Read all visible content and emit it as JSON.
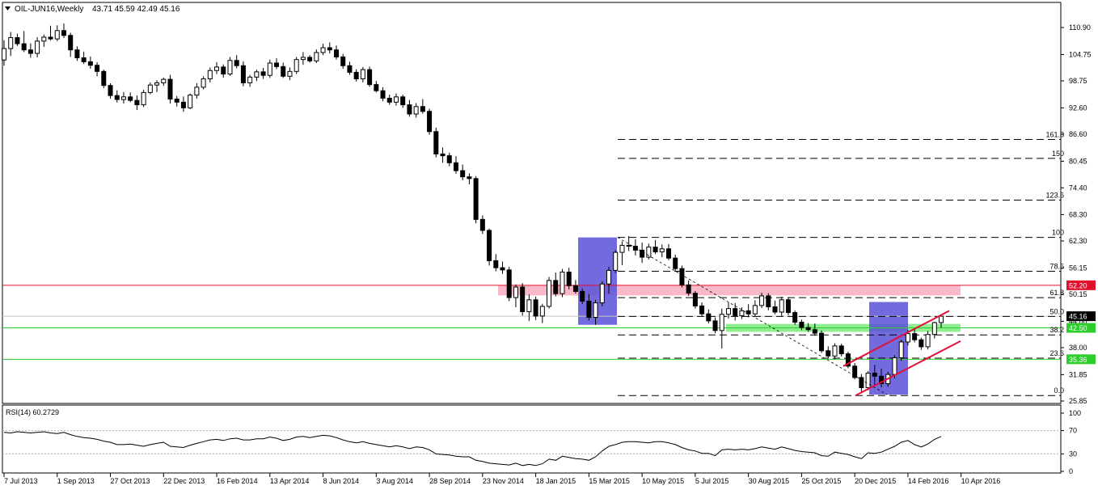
{
  "header": {
    "symbol": "OIL-JUN16,Weekly",
    "ohlc": "43.71 45.59 42.49 45.16",
    "collapse_icon": "triangle-down-icon"
  },
  "colors": {
    "bull": "#ffffff",
    "bear": "#000000",
    "resistance_line": "#e0102c",
    "support_line": "#2ccd2c",
    "resistance_zone": "#f8b8c8",
    "support_zone": "#90ee90",
    "box": "#5a50d8",
    "channel": "#e0103a",
    "rsi_line": "#000000"
  },
  "chart_data": [
    {
      "type": "candlestick",
      "title": "OIL-JUN16,Weekly",
      "ylim": [
        25.85,
        114.8
      ],
      "y_ticks": [
        "110.90",
        "104.75",
        "98.75",
        "92.60",
        "86.60",
        "80.45",
        "74.40",
        "68.30",
        "62.30",
        "56.15",
        "50.15",
        "44.00",
        "38.00",
        "31.85",
        "25.85"
      ],
      "x_labels": [
        "7 Jul 2013",
        "1 Sep 2013",
        "27 Oct 2013",
        "22 Dec 2013",
        "16 Feb 2014",
        "13 Apr 2014",
        "8 Jun 2014",
        "3 Aug 2014",
        "28 Sep 2014",
        "23 Nov 2014",
        "18 Jan 2015",
        "15 Mar 2015",
        "10 May 2015",
        "5 Jul 2015",
        "30 Aug 2015",
        "25 Oct 2015",
        "20 Dec 2015",
        "14 Feb 2016",
        "10 Apr 2016"
      ],
      "candles": [
        [
          103.5,
          108.0,
          102.2,
          106.1
        ],
        [
          106.1,
          109.9,
          104.4,
          108.6
        ],
        [
          108.6,
          109.5,
          106.7,
          107.2
        ],
        [
          107.2,
          110.1,
          105.3,
          105.8
        ],
        [
          105.8,
          107.3,
          104.0,
          105.0
        ],
        [
          105.0,
          108.7,
          104.1,
          107.8
        ],
        [
          107.8,
          109.3,
          106.5,
          108.7
        ],
        [
          108.7,
          111.3,
          107.9,
          108.3
        ],
        [
          108.3,
          111.4,
          107.8,
          110.2
        ],
        [
          110.2,
          111.8,
          108.5,
          109.1
        ],
        [
          109.1,
          109.7,
          104.2,
          105.8
        ],
        [
          105.8,
          106.6,
          103.3,
          104.0
        ],
        [
          104.0,
          105.4,
          102.6,
          103.1
        ],
        [
          103.1,
          104.3,
          101.5,
          102.3
        ],
        [
          102.3,
          103.0,
          99.8,
          100.9
        ],
        [
          100.9,
          101.3,
          97.1,
          97.7
        ],
        [
          97.7,
          98.2,
          94.7,
          95.4
        ],
        [
          95.4,
          96.6,
          93.8,
          94.5
        ],
        [
          94.5,
          96.2,
          93.6,
          95.1
        ],
        [
          95.1,
          96.1,
          93.9,
          94.3
        ],
        [
          94.3,
          95.4,
          92.1,
          93.3
        ],
        [
          93.3,
          96.7,
          92.8,
          96.1
        ],
        [
          96.1,
          98.4,
          95.7,
          97.8
        ],
        [
          97.8,
          98.9,
          96.2,
          98.3
        ],
        [
          98.3,
          99.5,
          97.6,
          99.1
        ],
        [
          99.1,
          100.1,
          93.6,
          94.6
        ],
        [
          94.6,
          95.3,
          92.9,
          93.9
        ],
        [
          93.9,
          95.2,
          91.7,
          92.6
        ],
        [
          92.6,
          95.9,
          92.3,
          95.5
        ],
        [
          95.5,
          98.2,
          94.7,
          97.3
        ],
        [
          97.3,
          99.8,
          96.8,
          99.2
        ],
        [
          99.2,
          101.8,
          98.4,
          101.1
        ],
        [
          101.1,
          103.0,
          100.3,
          101.9
        ],
        [
          101.9,
          102.5,
          99.5,
          100.3
        ],
        [
          100.3,
          104.2,
          99.9,
          103.4
        ],
        [
          103.4,
          104.6,
          101.6,
          102.2
        ],
        [
          102.2,
          103.2,
          97.5,
          98.3
        ],
        [
          98.3,
          100.1,
          97.4,
          99.6
        ],
        [
          99.6,
          101.3,
          98.7,
          100.8
        ],
        [
          100.8,
          101.7,
          99.2,
          100.0
        ],
        [
          100.0,
          103.6,
          99.4,
          102.8
        ],
        [
          102.8,
          103.9,
          101.4,
          102.0
        ],
        [
          102.0,
          102.9,
          99.4,
          99.8
        ],
        [
          99.8,
          101.8,
          98.9,
          100.9
        ],
        [
          100.9,
          104.2,
          100.3,
          103.6
        ],
        [
          103.6,
          105.3,
          102.4,
          104.1
        ],
        [
          104.1,
          104.6,
          102.9,
          103.3
        ],
        [
          103.3,
          105.9,
          102.8,
          105.2
        ],
        [
          105.2,
          107.2,
          104.6,
          106.3
        ],
        [
          106.3,
          107.5,
          105.0,
          105.8
        ],
        [
          105.8,
          106.8,
          103.6,
          104.2
        ],
        [
          104.2,
          104.9,
          101.5,
          102.2
        ],
        [
          102.2,
          103.1,
          100.1,
          100.7
        ],
        [
          100.7,
          101.4,
          98.6,
          99.2
        ],
        [
          99.2,
          101.9,
          98.4,
          101.3
        ],
        [
          101.3,
          102.0,
          97.4,
          97.9
        ],
        [
          97.9,
          98.7,
          96.1,
          96.5
        ],
        [
          96.5,
          97.3,
          94.1,
          94.8
        ],
        [
          94.8,
          95.6,
          93.3,
          93.9
        ],
        [
          93.9,
          95.9,
          93.1,
          95.1
        ],
        [
          95.1,
          95.6,
          92.6,
          93.3
        ],
        [
          93.3,
          94.4,
          90.6,
          91.2
        ],
        [
          91.2,
          93.7,
          90.4,
          92.9
        ],
        [
          92.9,
          94.6,
          91.3,
          91.8
        ],
        [
          91.8,
          92.4,
          86.5,
          87.2
        ],
        [
          87.2,
          88.1,
          81.3,
          82.1
        ],
        [
          82.1,
          83.6,
          80.1,
          81.7
        ],
        [
          81.7,
          82.4,
          79.3,
          80.1
        ],
        [
          80.1,
          81.6,
          77.6,
          78.3
        ],
        [
          78.3,
          79.7,
          76.1,
          76.9
        ],
        [
          76.9,
          77.7,
          75.2,
          76.5
        ],
        [
          76.5,
          77.0,
          66.3,
          67.2
        ],
        [
          67.2,
          68.1,
          63.9,
          64.7
        ],
        [
          64.7,
          65.1,
          56.7,
          57.8
        ],
        [
          57.8,
          59.3,
          55.4,
          56.2
        ],
        [
          56.2,
          57.6,
          54.8,
          55.7
        ],
        [
          55.7,
          56.4,
          48.6,
          49.4
        ],
        [
          49.4,
          52.4,
          47.2,
          51.8
        ],
        [
          51.8,
          52.7,
          45.3,
          46.2
        ],
        [
          46.2,
          50.1,
          44.1,
          48.9
        ],
        [
          48.9,
          49.6,
          44.3,
          45.2
        ],
        [
          45.2,
          48.0,
          43.6,
          47.4
        ],
        [
          47.4,
          54.1,
          46.9,
          53.3
        ],
        [
          53.3,
          55.1,
          49.7,
          50.3
        ],
        [
          50.3,
          55.9,
          49.5,
          55.2
        ],
        [
          55.2,
          56.2,
          51.3,
          52.1
        ],
        [
          52.1,
          53.4,
          50.3,
          50.8
        ],
        [
          50.8,
          51.5,
          47.9,
          48.6
        ],
        [
          48.6,
          50.2,
          44.2,
          44.9
        ],
        [
          44.9,
          48.9,
          43.2,
          48.2
        ],
        [
          48.2,
          53.1,
          47.4,
          52.5
        ],
        [
          52.5,
          56.4,
          50.3,
          55.6
        ],
        [
          55.6,
          60.2,
          55.0,
          59.7
        ],
        [
          59.7,
          62.2,
          56.8,
          61.3
        ],
        [
          61.3,
          63.4,
          60.0,
          61.1
        ],
        [
          61.1,
          62.7,
          59.0,
          60.2
        ],
        [
          60.2,
          61.9,
          57.3,
          58.6
        ],
        [
          58.6,
          61.7,
          58.1,
          60.9
        ],
        [
          60.9,
          62.5,
          59.3,
          59.8
        ],
        [
          59.8,
          61.5,
          58.6,
          60.5
        ],
        [
          60.5,
          61.6,
          57.9,
          58.4
        ],
        [
          58.4,
          59.2,
          55.5,
          56.0
        ],
        [
          56.0,
          56.7,
          51.7,
          52.3
        ],
        [
          52.3,
          53.3,
          49.8,
          50.4
        ],
        [
          50.4,
          50.9,
          46.9,
          47.5
        ],
        [
          47.5,
          48.3,
          45.1,
          45.7
        ],
        [
          45.7,
          46.7,
          43.5,
          44.1
        ],
        [
          44.1,
          44.9,
          41.3,
          41.9
        ],
        [
          41.9,
          46.9,
          37.8,
          45.6
        ],
        [
          45.6,
          48.3,
          44.6,
          46.9
        ],
        [
          46.9,
          48.2,
          44.2,
          45.3
        ],
        [
          45.3,
          47.2,
          44.5,
          46.4
        ],
        [
          46.4,
          47.9,
          44.9,
          45.7
        ],
        [
          45.7,
          48.8,
          45.1,
          47.6
        ],
        [
          47.6,
          50.5,
          47.0,
          49.8
        ],
        [
          49.8,
          50.4,
          46.5,
          47.3
        ],
        [
          47.3,
          48.7,
          45.6,
          46.1
        ],
        [
          46.1,
          49.6,
          45.2,
          48.9
        ],
        [
          48.9,
          49.4,
          45.4,
          46.0
        ],
        [
          46.0,
          46.5,
          43.2,
          43.8
        ],
        [
          43.8,
          44.4,
          42.0,
          42.6
        ],
        [
          42.6,
          43.6,
          41.6,
          42.1
        ],
        [
          42.1,
          43.5,
          40.7,
          41.3
        ],
        [
          41.3,
          41.9,
          36.8,
          37.3
        ],
        [
          37.3,
          38.3,
          35.6,
          36.1
        ],
        [
          36.1,
          39.0,
          35.3,
          38.4
        ],
        [
          38.4,
          38.9,
          36.0,
          36.6
        ],
        [
          36.6,
          37.1,
          33.3,
          33.8
        ],
        [
          33.8,
          34.5,
          30.8,
          31.2
        ],
        [
          31.2,
          32.0,
          28.0,
          28.9
        ],
        [
          28.9,
          32.7,
          28.3,
          32.2
        ],
        [
          32.2,
          34.1,
          29.5,
          31.5
        ],
        [
          31.5,
          33.2,
          29.0,
          29.8
        ],
        [
          29.8,
          32.5,
          29.1,
          31.9
        ],
        [
          31.9,
          36.3,
          31.0,
          35.7
        ],
        [
          35.7,
          39.8,
          35.0,
          39.3
        ],
        [
          39.3,
          42.0,
          38.5,
          41.2
        ],
        [
          41.2,
          42.4,
          39.2,
          39.8
        ],
        [
          39.8,
          40.3,
          37.5,
          38.2
        ],
        [
          38.2,
          41.8,
          37.6,
          41.0
        ],
        [
          41.0,
          43.9,
          40.1,
          43.7
        ],
        [
          43.71,
          45.59,
          42.49,
          45.16
        ]
      ],
      "fib_levels": [
        {
          "label": "161.8",
          "price": 85.4
        },
        {
          "label": "150",
          "price": 81.1
        },
        {
          "label": "123.6",
          "price": 71.6
        },
        {
          "label": "100",
          "price": 63.1
        },
        {
          "label": "78.6",
          "price": 55.4
        },
        {
          "label": "61.8",
          "price": 49.4
        },
        {
          "label": "50.0",
          "price": 45.1
        },
        {
          "label": "38.2",
          "price": 40.9
        },
        {
          "label": "23.6",
          "price": 35.6
        },
        {
          "label": "0.0",
          "price": 27.1
        }
      ],
      "price_levels": [
        {
          "label": "52.20",
          "kind": "resistance"
        },
        {
          "label": "42.50",
          "kind": "support"
        },
        {
          "label": "35.36",
          "kind": "support"
        },
        {
          "label": "45.16",
          "kind": "current"
        }
      ]
    },
    {
      "type": "line",
      "title": "RSI(14) 60.2729",
      "ylim": [
        0,
        100
      ],
      "y_ticks": [
        "100",
        "70",
        "30",
        "0"
      ],
      "levels": [
        70,
        30
      ],
      "values": [
        67,
        66,
        68,
        67,
        66,
        67,
        68,
        66,
        65,
        67,
        63,
        60,
        58,
        57,
        55,
        52,
        50,
        46,
        46,
        47,
        45,
        43,
        46,
        48,
        50,
        43,
        42,
        41,
        45,
        48,
        51,
        54,
        55,
        53,
        56,
        57,
        54,
        54,
        56,
        56,
        59,
        57,
        53,
        55,
        59,
        60,
        58,
        60,
        62,
        61,
        58,
        54,
        51,
        49,
        51,
        48,
        46,
        44,
        42,
        44,
        42,
        39,
        42,
        41,
        37,
        30,
        29,
        28,
        26,
        25,
        25,
        19,
        17,
        14,
        13,
        12,
        11,
        14,
        10,
        12,
        10,
        13,
        21,
        19,
        26,
        24,
        22,
        21,
        19,
        25,
        35,
        43,
        46,
        50,
        51,
        51,
        50,
        49,
        51,
        51,
        49,
        46,
        41,
        37,
        35,
        31,
        31,
        27,
        37,
        38,
        37,
        38,
        37,
        39,
        42,
        40,
        38,
        42,
        39,
        36,
        34,
        33,
        32,
        27,
        26,
        33,
        31,
        29,
        25,
        22,
        32,
        31,
        33,
        38,
        43,
        50,
        53,
        46,
        42,
        47,
        55,
        60
      ]
    }
  ]
}
